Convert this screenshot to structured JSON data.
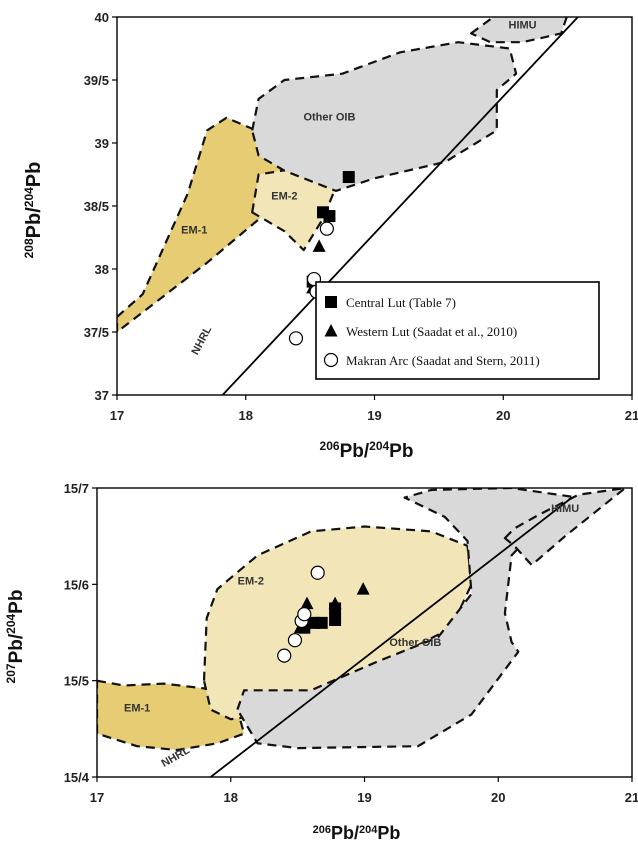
{
  "colors": {
    "em1": "#e6cc73",
    "em2": "#f2e6b8",
    "other_oib": "#d9d9d9",
    "himu": "#d9d9d9",
    "frame": "#000000",
    "marker": "#000000"
  },
  "chart_data": [
    {
      "type": "scatter",
      "id": "pb208",
      "xlim": [
        17,
        21
      ],
      "ylim": [
        37,
        40
      ],
      "x_ticks": [
        17,
        18,
        19,
        20,
        21
      ],
      "y_ticks": [
        37,
        37.5,
        38,
        38.5,
        39,
        39.5,
        40
      ],
      "x_tick_labels": [
        "17",
        "18",
        "19",
        "20",
        "21"
      ],
      "y_tick_labels": [
        "37",
        "37/5",
        "38",
        "38/5",
        "39",
        "39/5",
        "40"
      ],
      "xlabel": {
        "sup": "206",
        "base": "Pb/",
        "sup2": "204",
        "base2": "Pb"
      },
      "ylabel": {
        "sup": "208",
        "base": "Pb/",
        "sup2": "204",
        "base2": "Pb"
      },
      "fields": [
        {
          "name": "EM-1",
          "label": "EM-1",
          "color": "#e6cc73",
          "label_at": [
            17.6,
            38.28
          ],
          "polygon": [
            [
              17,
              37.62
            ],
            [
              17.2,
              37.8
            ],
            [
              17.55,
              38.6
            ],
            [
              17.7,
              39.1
            ],
            [
              17.85,
              39.2
            ],
            [
              18.5,
              38.92
            ],
            [
              18.55,
              38.78
            ],
            [
              17.7,
              38.05
            ],
            [
              17,
              37.5
            ]
          ]
        },
        {
          "name": "EM-2",
          "label": "EM-2",
          "color": "#f2e6b8",
          "label_at": [
            18.3,
            38.55
          ],
          "polygon": [
            [
              18.05,
              38.45
            ],
            [
              18.1,
              38.75
            ],
            [
              18.4,
              38.8
            ],
            [
              18.5,
              38.85
            ],
            [
              18.7,
              38.75
            ],
            [
              18.75,
              38.9
            ],
            [
              18.7,
              38.65
            ],
            [
              18.6,
              38.4
            ],
            [
              18.45,
              38.15
            ],
            [
              18.3,
              38.3
            ]
          ]
        },
        {
          "name": "Other OIB",
          "label": "Other OIB",
          "color": "#d9d9d9",
          "label_at": [
            18.65,
            39.18
          ],
          "polygon": [
            [
              18.05,
              39.1
            ],
            [
              18.1,
              39.35
            ],
            [
              18.3,
              39.5
            ],
            [
              18.75,
              39.55
            ],
            [
              19.2,
              39.72
            ],
            [
              19.65,
              39.8
            ],
            [
              20.05,
              39.75
            ],
            [
              20.1,
              39.55
            ],
            [
              19.95,
              39.42
            ],
            [
              19.95,
              39.1
            ],
            [
              19.55,
              38.85
            ],
            [
              19,
              38.72
            ],
            [
              18.7,
              38.62
            ],
            [
              18.3,
              38.78
            ],
            [
              18.1,
              38.9
            ]
          ]
        },
        {
          "name": "HIMU",
          "label": "HIMU",
          "color": "#d9d9d9",
          "label_at": [
            20.15,
            39.91
          ],
          "polygon": [
            [
              19.75,
              39.87
            ],
            [
              19.95,
              40.02
            ],
            [
              20.5,
              40.02
            ],
            [
              20.45,
              39.87
            ],
            [
              20.15,
              39.8
            ],
            [
              19.9,
              39.8
            ]
          ]
        }
      ],
      "lines": [
        {
          "name": "NHRL",
          "label": "NHRL",
          "points": [
            [
              17.82,
              37
            ],
            [
              20.58,
              40
            ]
          ],
          "label_at": [
            17.68,
            37.42
          ],
          "label_rot": -62
        }
      ],
      "series": [
        {
          "name": "Central Lut (Table 7)",
          "marker": "square",
          "points": [
            [
              18.52,
              37.9
            ],
            [
              18.6,
              38.45
            ],
            [
              18.65,
              38.42
            ],
            [
              18.8,
              38.73
            ]
          ]
        },
        {
          "name": "Western Lut (Saadat et al., 2010)",
          "marker": "triangle",
          "points": [
            [
              18.52,
              37.85
            ],
            [
              18.57,
              38.18
            ]
          ]
        },
        {
          "name": "Makran Arc (Saadat and Stern, 2011)",
          "marker": "circle",
          "points": [
            [
              18.39,
              37.45
            ],
            [
              18.53,
              37.92
            ],
            [
              18.55,
              37.82
            ],
            [
              18.63,
              38.32
            ]
          ]
        }
      ],
      "legend": {
        "entries": [
          {
            "marker": "square",
            "label": "Central Lut (Table 7)"
          },
          {
            "marker": "triangle",
            "label": "Western Lut (Saadat et al., 2010)"
          },
          {
            "marker": "circle",
            "label": "Makran Arc (Saadat and Stern, 2011)"
          }
        ],
        "placement": "bottom-right"
      }
    },
    {
      "type": "scatter",
      "id": "pb207",
      "xlim": [
        17,
        21
      ],
      "ylim": [
        15.4,
        15.7
      ],
      "x_ticks": [
        17,
        18,
        19,
        20,
        21
      ],
      "y_ticks": [
        15.4,
        15.5,
        15.6,
        15.7
      ],
      "x_tick_labels": [
        "17",
        "18",
        "19",
        "20",
        "21"
      ],
      "y_tick_labels": [
        "15/4",
        "15/5",
        "15/6",
        "15/7"
      ],
      "xlabel": {
        "sup": "206",
        "base": "Pb/",
        "sup2": "204",
        "base2": "Pb"
      },
      "ylabel": {
        "sup": "207",
        "base": "Pb/",
        "sup2": "204",
        "base2": "Pb"
      },
      "fields": [
        {
          "name": "EM-1",
          "label": "EM-1",
          "color": "#e6cc73",
          "label_at": [
            17.3,
            15.468
          ],
          "polygon": [
            [
              17,
              15.5
            ],
            [
              17.2,
              15.495
            ],
            [
              17.5,
              15.497
            ],
            [
              17.8,
              15.492
            ],
            [
              18,
              15.488
            ],
            [
              18.05,
              15.47
            ],
            [
              18.1,
              15.445
            ],
            [
              17.9,
              15.435
            ],
            [
              17.6,
              15.428
            ],
            [
              17.3,
              15.432
            ],
            [
              17,
              15.445
            ]
          ]
        },
        {
          "name": "EM-2",
          "label": "EM-2",
          "color": "#f2e6b8",
          "label_at": [
            18.15,
            15.6
          ],
          "polygon": [
            [
              17.8,
              15.5
            ],
            [
              17.82,
              15.565
            ],
            [
              17.9,
              15.595
            ],
            [
              18.2,
              15.63
            ],
            [
              18.6,
              15.655
            ],
            [
              19,
              15.66
            ],
            [
              19.5,
              15.655
            ],
            [
              19.77,
              15.64
            ],
            [
              19.8,
              15.6
            ],
            [
              19.65,
              15.555
            ],
            [
              19.1,
              15.515
            ],
            [
              18.6,
              15.475
            ],
            [
              18.3,
              15.465
            ],
            [
              18,
              15.46
            ],
            [
              17.85,
              15.47
            ]
          ]
        },
        {
          "name": "Other OIB",
          "label": "Other OIB",
          "color": "#d9d9d9",
          "label_at": [
            19.38,
            15.536
          ],
          "polygon": [
            [
              18.05,
              15.47
            ],
            [
              18.1,
              15.49
            ],
            [
              18.6,
              15.49
            ],
            [
              19.1,
              15.52
            ],
            [
              19.55,
              15.545
            ],
            [
              19.8,
              15.59
            ],
            [
              19.77,
              15.645
            ],
            [
              19.6,
              15.67
            ],
            [
              19.3,
              15.69
            ],
            [
              19.5,
              15.698
            ],
            [
              20.1,
              15.7
            ],
            [
              20.7,
              15.688
            ],
            [
              20.2,
              15.645
            ],
            [
              20.1,
              15.63
            ],
            [
              20.05,
              15.57
            ],
            [
              20.1,
              15.54
            ],
            [
              20.15,
              15.53
            ],
            [
              19.8,
              15.465
            ],
            [
              19.4,
              15.432
            ],
            [
              18.5,
              15.43
            ],
            [
              18.2,
              15.435
            ]
          ]
        },
        {
          "name": "HIMU",
          "label": "HIMU",
          "color": "#d9d9d9",
          "label_at": [
            20.5,
            15.675
          ],
          "polygon": [
            [
              20.05,
              15.648
            ],
            [
              20.12,
              15.658
            ],
            [
              20.3,
              15.672
            ],
            [
              20.6,
              15.693
            ],
            [
              20.95,
              15.7
            ],
            [
              20.5,
              15.65
            ],
            [
              20.25,
              15.62
            ],
            [
              20.12,
              15.64
            ]
          ]
        }
      ],
      "lines": [
        {
          "name": "NHRL",
          "label": "NHRL",
          "points": [
            [
              17.85,
              15.4
            ],
            [
              20.55,
              15.69
            ]
          ],
          "label_at": [
            17.6,
            15.418
          ],
          "label_rot": -30
        }
      ],
      "series": [
        {
          "name": "Central Lut (Table 7)",
          "marker": "square",
          "points": [
            [
              18.55,
              15.555
            ],
            [
              18.62,
              15.56
            ],
            [
              18.68,
              15.56
            ],
            [
              18.78,
              15.563
            ],
            [
              18.78,
              15.575
            ]
          ]
        },
        {
          "name": "Western Lut (Saadat et al., 2010)",
          "marker": "triangle",
          "points": [
            [
              18.52,
              15.555
            ],
            [
              18.57,
              15.58
            ],
            [
              18.78,
              15.58
            ],
            [
              18.99,
              15.595
            ]
          ]
        },
        {
          "name": "Makran Arc (Saadat and Stern, 2011)",
          "marker": "circle",
          "points": [
            [
              18.4,
              15.526
            ],
            [
              18.48,
              15.542
            ],
            [
              18.53,
              15.562
            ],
            [
              18.55,
              15.569
            ],
            [
              18.65,
              15.612
            ]
          ]
        }
      ]
    }
  ]
}
